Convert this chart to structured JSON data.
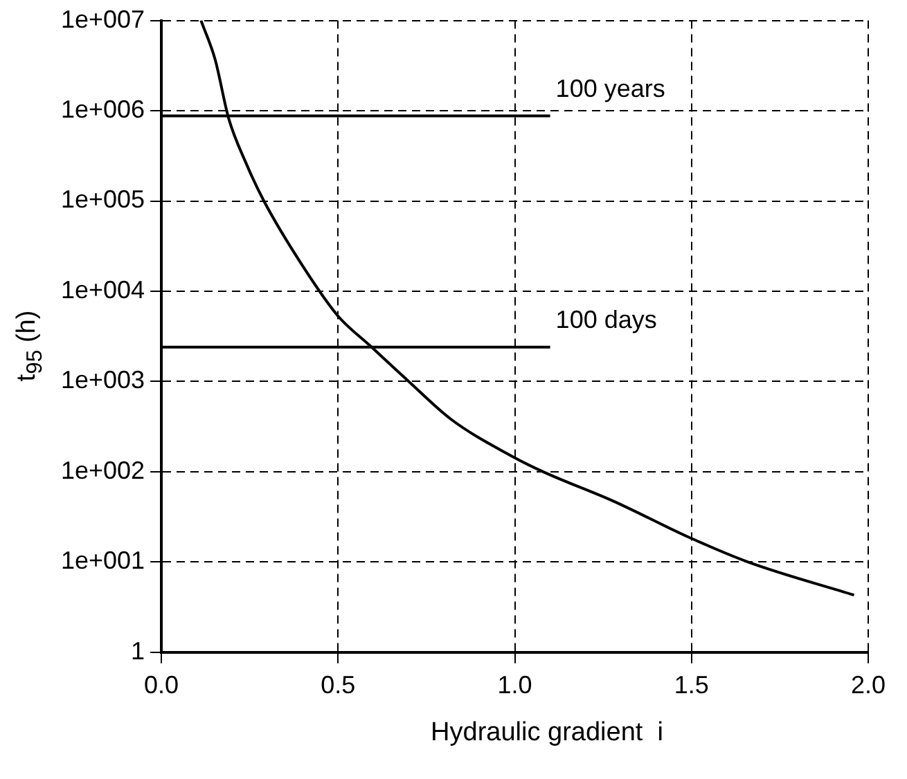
{
  "chart_data": {
    "type": "line",
    "xlabel": "Hydraulic gradient  i",
    "ylabel": "t$_{95}$  (h)",
    "log": "y",
    "grid": true,
    "marker": "none",
    "line_style": "solid",
    "xlim": [
      0,
      2
    ],
    "xticks": [
      {
        "value": 0,
        "label": "0.0"
      },
      0.5,
      {
        "value": 1,
        "label": "1.0"
      },
      1.5,
      {
        "value": 2,
        "label": "2.0"
      }
    ],
    "ylim": [
      1,
      10000000
    ],
    "yticks": [
      1,
      {
        "value": 10,
        "label": "1e+001"
      },
      {
        "value": 100,
        "label": "1e+002"
      },
      {
        "value": 1000,
        "label": "1e+003"
      },
      {
        "value": 10000,
        "label": "1e+004"
      },
      {
        "value": 100000,
        "label": "1e+005"
      },
      {
        "value": 1000000,
        "label": "1e+006"
      },
      {
        "value": 10000000,
        "label": "1e+007"
      }
    ],
    "series": [
      {
        "color": "#000000",
        "x": [
          0.112,
          0.152,
          0.19,
          0.24,
          0.29,
          0.4,
          0.5,
          0.59,
          0.7,
          0.82,
          0.99,
          1.08,
          1.28,
          1.49,
          1.66,
          1.96
        ],
        "values": [
          10000000,
          3700000,
          830000,
          260000,
          100000,
          19000,
          5300,
          2500,
          1000,
          380,
          150,
          100,
          47,
          19,
          10,
          4.3
        ]
      },
      {
        "color": "#000000",
        "x": [
          0,
          1.1
        ],
        "values": [
          876000,
          876000
        ]
      },
      {
        "color": "#000000",
        "x": [
          0,
          1.1
        ],
        "values": [
          2400,
          2400
        ]
      }
    ],
    "annotations": [
      {
        "text": "100 years",
        "x": 1.1,
        "y": 876000
      },
      {
        "text": "100 days",
        "x": 1.1,
        "y": 2400
      }
    ]
  }
}
